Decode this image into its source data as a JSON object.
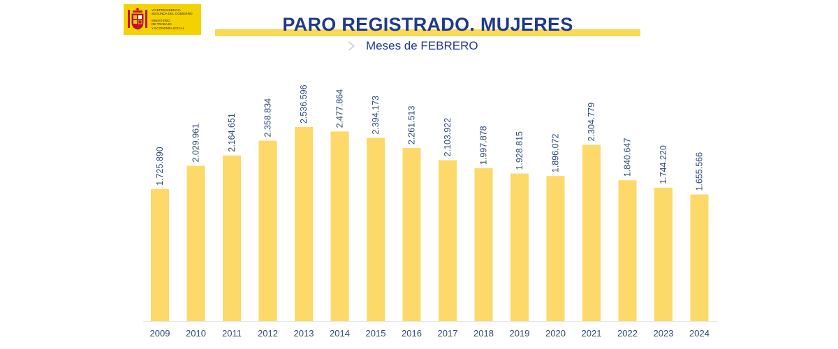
{
  "logo": {
    "lines": [
      "VICEPRESIDENCIA",
      "SEGUNDA DEL GOBIERNO",
      "MINISTERIO",
      "DE TRABAJO",
      "Y ECONOMÍA SOCIAL"
    ]
  },
  "colors": {
    "bar": "#fdd96a",
    "title": "#1f3a8a",
    "axis_text": "#2e4a7a",
    "label_text": "#2e4a7a",
    "band": "#f7d954",
    "logo_bg": "#f4d200"
  },
  "chart_data": {
    "type": "bar",
    "title": "PARO REGISTRADO. MUJERES",
    "subtitle": "Meses de FEBRERO",
    "categories": [
      "2009",
      "2010",
      "2011",
      "2012",
      "2013",
      "2014",
      "2015",
      "2016",
      "2017",
      "2018",
      "2019",
      "2020",
      "2021",
      "2022",
      "2023",
      "2024"
    ],
    "values": [
      1725890,
      2029961,
      2164651,
      2358834,
      2536596,
      2477864,
      2394173,
      2261513,
      2103922,
      1997878,
      1928815,
      1896072,
      2304779,
      1840647,
      1744220,
      1655566
    ],
    "value_labels": [
      "1.725.890",
      "2.029.961",
      "2.164.651",
      "2.358.834",
      "2.536.596",
      "2.477.864",
      "2.394.173",
      "2.261.513",
      "2.103.922",
      "1.997.878",
      "1.928.815",
      "1.896.072",
      "2.304.779",
      "1.840.647",
      "1.744.220",
      "1.655.566"
    ],
    "xlabel": "",
    "ylabel": "",
    "ylim": [
      0,
      2750000
    ],
    "grid": false,
    "legend": "none"
  }
}
